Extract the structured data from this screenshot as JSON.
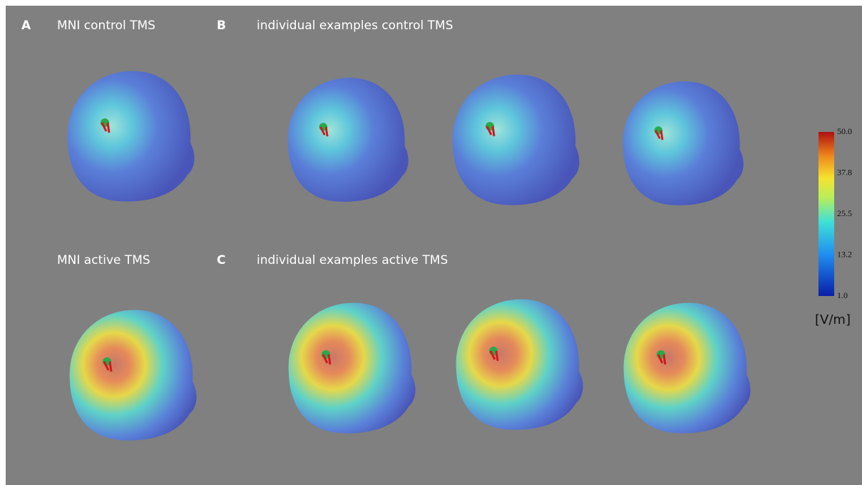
{
  "panels": [
    {
      "letter": "A",
      "title": "MNI control TMS"
    },
    {
      "letter": "B",
      "title": "individual examples control TMS"
    },
    {
      "title": "MNI active TMS"
    },
    {
      "letter": "C",
      "title": "individual examples active TMS"
    }
  ],
  "colorbar": {
    "ticks": [
      "50.0",
      "37.8",
      "25.5",
      "13.2",
      "1.0"
    ],
    "unit": "[V/m]"
  }
}
